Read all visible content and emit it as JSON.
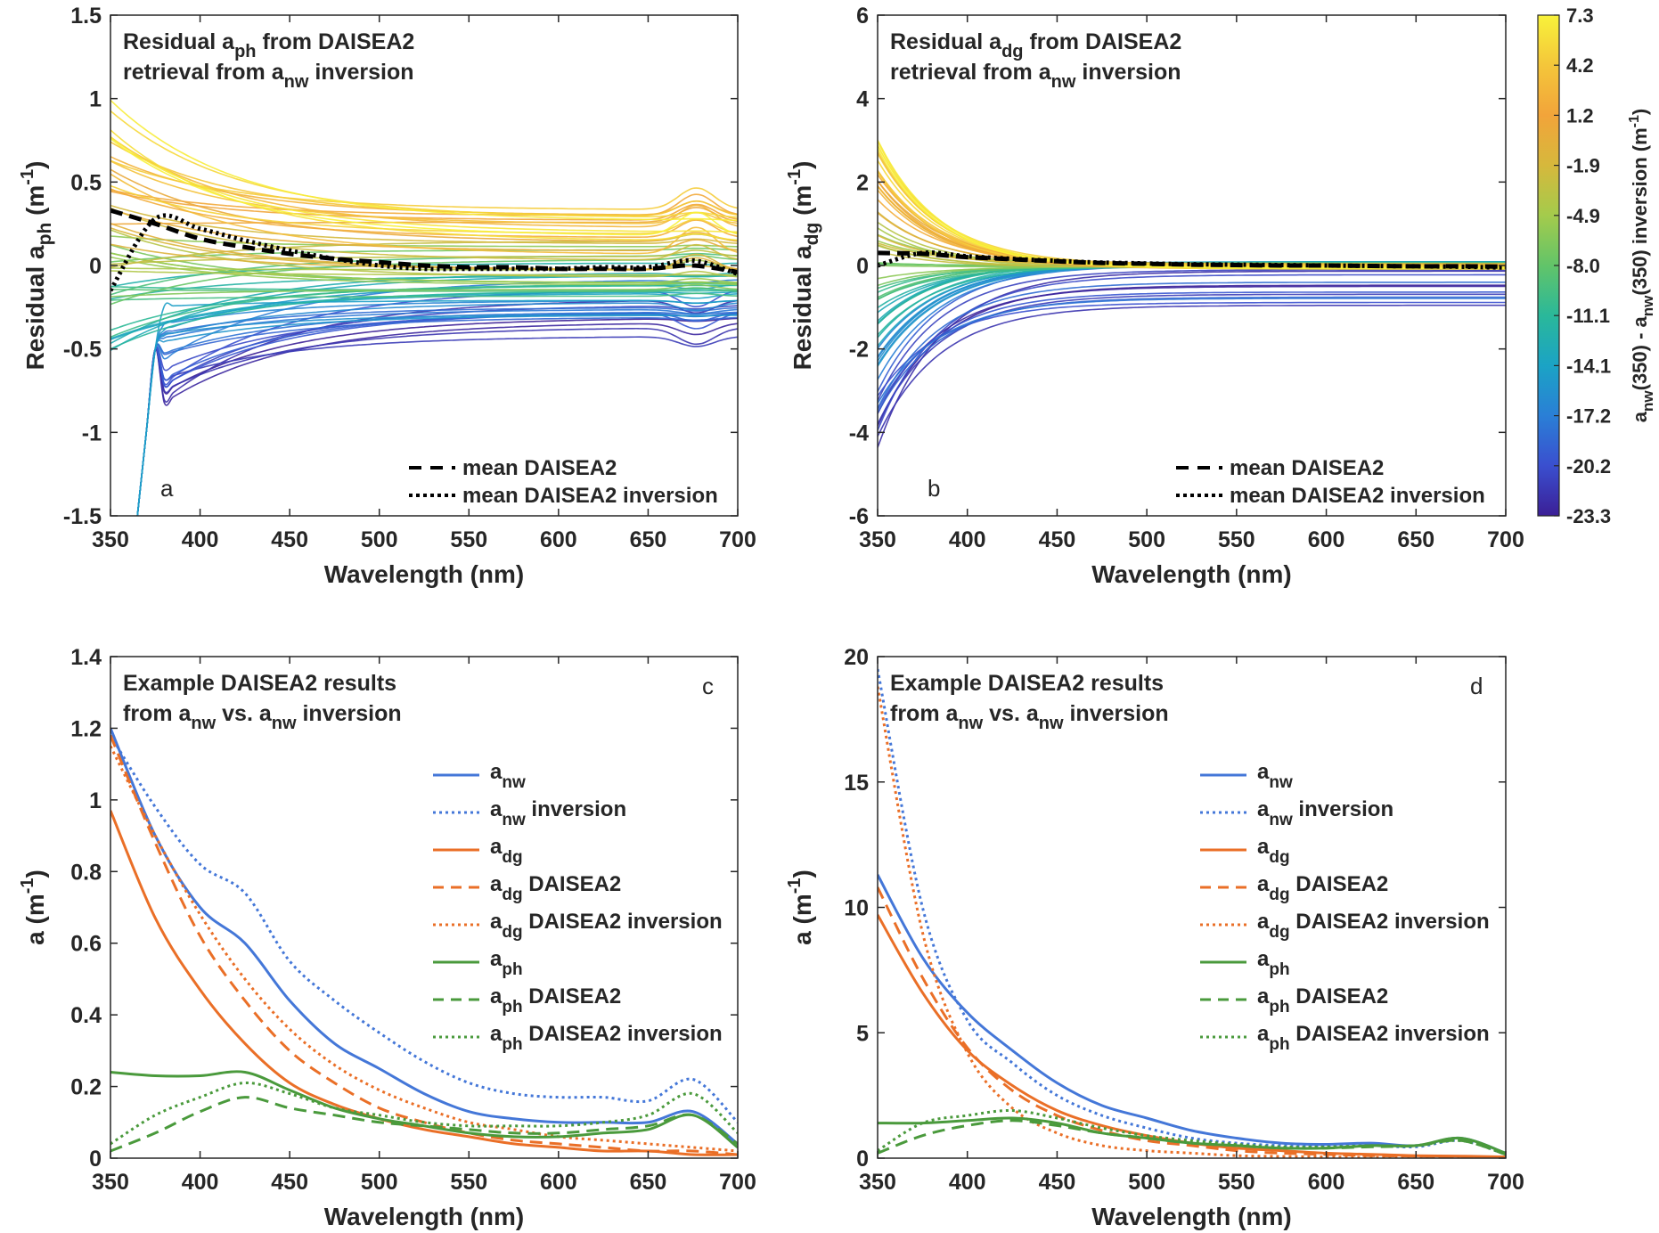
{
  "colors": {
    "anw": "#4477d8",
    "adg": "#ea6f27",
    "aph": "#4a9a3c",
    "mean": "#000000",
    "viridis_stops": [
      "#3b1f96",
      "#3a4fcf",
      "#2a7fd6",
      "#1ba3c5",
      "#2ab89a",
      "#62c469",
      "#a4cb4c",
      "#d6b83c",
      "#f2a43a",
      "#f4c63a",
      "#f8f23a"
    ]
  },
  "colorbar": {
    "ticks": [
      "7.3",
      "4.2",
      "1.2",
      "-1.9",
      "-4.9",
      "-8.0",
      "-11.1",
      "-14.1",
      "-17.2",
      "-20.2",
      "-23.3"
    ],
    "label_main": "a",
    "label_sub1": "nw",
    "label_mid": "(350) - a",
    "label_sub2": "nw",
    "label_tail": "(350) inversion (m",
    "label_sup": "-1",
    "label_close": ")"
  },
  "chart_data": [
    {
      "id": "a",
      "type": "line",
      "panel_letter": "a",
      "title_line1_pre": "Residual a",
      "title_line1_sub": "ph",
      "title_line1_post": " from DAISEA2",
      "title_line2_pre": "retrieval from a",
      "title_line2_sub": "nw",
      "title_line2_post": " inversion",
      "xlabel": "Wavelength (nm)",
      "ylabel_pre": "Residual a",
      "ylabel_sub": "ph",
      "ylabel_mid": " (m",
      "ylabel_sup": "-1",
      "ylabel_post": ")",
      "xlim": [
        350,
        700
      ],
      "ylim": [
        -1.5,
        1.5
      ],
      "xticks": [
        350,
        400,
        450,
        500,
        550,
        600,
        650,
        700
      ],
      "yticks": [
        "-1.5",
        "-1",
        "-0.5",
        "0",
        "0.5",
        "1",
        "1.5"
      ],
      "legend": [
        "mean DAISEA2",
        "mean DAISEA2 inversion"
      ],
      "x": [
        350,
        375,
        400,
        425,
        450,
        475,
        500,
        525,
        550,
        575,
        600,
        625,
        650,
        675,
        700
      ],
      "series": [
        {
          "name": "mean DAISEA2",
          "style": "dashed",
          "values": [
            0.33,
            0.25,
            0.16,
            0.11,
            0.07,
            0.04,
            0.02,
            0.0,
            -0.01,
            -0.01,
            -0.02,
            -0.02,
            -0.02,
            0.0,
            -0.04
          ]
        },
        {
          "name": "mean DAISEA2 inversion",
          "style": "dotted",
          "values": [
            -0.15,
            0.28,
            0.22,
            0.15,
            0.09,
            0.04,
            0.0,
            -0.02,
            -0.02,
            -0.02,
            -0.02,
            -0.01,
            -0.01,
            0.03,
            -0.05
          ]
        }
      ]
    },
    {
      "id": "b",
      "type": "line",
      "panel_letter": "b",
      "title_line1_pre": "Residual a",
      "title_line1_sub": "dg",
      "title_line1_post": " from DAISEA2",
      "title_line2_pre": "retrieval from a",
      "title_line2_sub": "nw",
      "title_line2_post": " inversion",
      "xlabel": "Wavelength (nm)",
      "ylabel_pre": "Residual a",
      "ylabel_sub": "dg",
      "ylabel_mid": " (m",
      "ylabel_sup": "-1",
      "ylabel_post": ")",
      "xlim": [
        350,
        700
      ],
      "ylim": [
        -6,
        6
      ],
      "xticks": [
        350,
        400,
        450,
        500,
        550,
        600,
        650,
        700
      ],
      "yticks": [
        "-6",
        "-4",
        "-2",
        "0",
        "2",
        "4",
        "6"
      ],
      "legend": [
        "mean DAISEA2",
        "mean DAISEA2 inversion"
      ],
      "x": [
        350,
        375,
        400,
        425,
        450,
        475,
        500,
        525,
        550,
        575,
        600,
        625,
        650,
        675,
        700
      ],
      "series": [
        {
          "name": "mean DAISEA2",
          "style": "dashed",
          "values": [
            0.3,
            0.28,
            0.2,
            0.15,
            0.1,
            0.06,
            0.04,
            0.02,
            0.01,
            0.0,
            0.0,
            -0.01,
            -0.02,
            -0.02,
            -0.03
          ]
        },
        {
          "name": "mean DAISEA2 inversion",
          "style": "dotted",
          "values": [
            0.0,
            0.3,
            0.22,
            0.16,
            0.11,
            0.07,
            0.05,
            0.03,
            0.02,
            0.01,
            0.0,
            -0.01,
            -0.02,
            -0.03,
            -0.05
          ]
        }
      ]
    },
    {
      "id": "c",
      "type": "line",
      "panel_letter": "c",
      "title_line1_pre": "Example DAISEA2 results",
      "title_line2_pre": "from a",
      "title_line2_sub": "nw",
      "title_line2_mid": " vs. a",
      "title_line2_sub2": "nw",
      "title_line2_post": " inversion",
      "xlabel": "Wavelength (nm)",
      "ylabel_pre": "a (m",
      "ylabel_sup": "-1",
      "ylabel_post": ")",
      "xlim": [
        350,
        700
      ],
      "ylim": [
        0,
        1.4
      ],
      "xticks": [
        350,
        400,
        450,
        500,
        550,
        600,
        650,
        700
      ],
      "yticks": [
        "0",
        "0.2",
        "0.4",
        "0.6",
        "0.8",
        "1",
        "1.2",
        "1.4"
      ],
      "x": [
        350,
        375,
        400,
        425,
        450,
        475,
        500,
        525,
        550,
        575,
        600,
        625,
        650,
        675,
        700
      ],
      "series": [
        {
          "name_base": "a",
          "name_sub": "nw",
          "name_suffix": "",
          "color": "anw",
          "style": "solid",
          "values": [
            1.2,
            0.9,
            0.7,
            0.6,
            0.44,
            0.32,
            0.25,
            0.18,
            0.13,
            0.11,
            0.1,
            0.1,
            0.1,
            0.13,
            0.04
          ]
        },
        {
          "name_base": "a",
          "name_sub": "nw",
          "name_suffix": " inversion",
          "color": "anw",
          "style": "dotted",
          "values": [
            1.18,
            0.98,
            0.82,
            0.74,
            0.55,
            0.44,
            0.35,
            0.27,
            0.21,
            0.18,
            0.17,
            0.17,
            0.16,
            0.22,
            0.1
          ]
        },
        {
          "name_base": "a",
          "name_sub": "dg",
          "name_suffix": "",
          "color": "adg",
          "style": "solid",
          "values": [
            0.97,
            0.67,
            0.47,
            0.32,
            0.21,
            0.15,
            0.11,
            0.08,
            0.06,
            0.04,
            0.03,
            0.02,
            0.02,
            0.01,
            0.01
          ]
        },
        {
          "name_base": "a",
          "name_sub": "dg",
          "name_suffix": " DAISEA2",
          "color": "adg",
          "style": "dashed",
          "values": [
            1.18,
            0.88,
            0.62,
            0.44,
            0.3,
            0.21,
            0.14,
            0.1,
            0.07,
            0.05,
            0.04,
            0.03,
            0.02,
            0.02,
            0.01
          ]
        },
        {
          "name_base": "a",
          "name_sub": "dg",
          "name_suffix": " DAISEA2 inversion",
          "color": "adg",
          "style": "dotted",
          "values": [
            1.15,
            0.9,
            0.68,
            0.5,
            0.36,
            0.26,
            0.19,
            0.14,
            0.1,
            0.08,
            0.06,
            0.05,
            0.04,
            0.03,
            0.02
          ]
        },
        {
          "name_base": "a",
          "name_sub": "ph",
          "name_suffix": "",
          "color": "aph",
          "style": "solid",
          "values": [
            0.24,
            0.23,
            0.23,
            0.24,
            0.19,
            0.14,
            0.11,
            0.09,
            0.07,
            0.06,
            0.06,
            0.07,
            0.08,
            0.12,
            0.03
          ]
        },
        {
          "name_base": "a",
          "name_sub": "ph",
          "name_suffix": " DAISEA2",
          "color": "aph",
          "style": "dashed",
          "values": [
            0.02,
            0.07,
            0.13,
            0.17,
            0.14,
            0.12,
            0.1,
            0.09,
            0.08,
            0.07,
            0.07,
            0.08,
            0.09,
            0.12,
            0.04
          ]
        },
        {
          "name_base": "a",
          "name_sub": "ph",
          "name_suffix": " DAISEA2 inversion",
          "color": "aph",
          "style": "dotted",
          "values": [
            0.04,
            0.12,
            0.17,
            0.21,
            0.18,
            0.14,
            0.12,
            0.1,
            0.09,
            0.09,
            0.09,
            0.1,
            0.12,
            0.18,
            0.07
          ]
        }
      ]
    },
    {
      "id": "d",
      "type": "line",
      "panel_letter": "d",
      "title_line1_pre": "Example DAISEA2 results",
      "title_line2_pre": "from a",
      "title_line2_sub": "nw",
      "title_line2_mid": " vs. a",
      "title_line2_sub2": "nw",
      "title_line2_post": " inversion",
      "xlabel": "Wavelength (nm)",
      "ylabel_pre": "a (m",
      "ylabel_sup": "-1",
      "ylabel_post": ")",
      "xlim": [
        350,
        700
      ],
      "ylim": [
        0,
        20
      ],
      "xticks": [
        350,
        400,
        450,
        500,
        550,
        600,
        650,
        700
      ],
      "yticks": [
        "0",
        "5",
        "10",
        "15",
        "20"
      ],
      "x": [
        350,
        375,
        400,
        425,
        450,
        475,
        500,
        525,
        550,
        575,
        600,
        625,
        650,
        675,
        700
      ],
      "series": [
        {
          "name_base": "a",
          "name_sub": "nw",
          "name_suffix": "",
          "color": "anw",
          "style": "solid",
          "values": [
            11.3,
            8.0,
            5.8,
            4.3,
            3.0,
            2.1,
            1.6,
            1.1,
            0.8,
            0.6,
            0.55,
            0.6,
            0.5,
            0.8,
            0.2
          ]
        },
        {
          "name_base": "a",
          "name_sub": "nw",
          "name_suffix": " inversion",
          "color": "anw",
          "style": "dotted",
          "values": [
            19.5,
            10.0,
            5.5,
            3.8,
            2.5,
            1.7,
            1.2,
            0.8,
            0.6,
            0.5,
            0.45,
            0.5,
            0.45,
            0.7,
            0.15
          ]
        },
        {
          "name_base": "a",
          "name_sub": "dg",
          "name_suffix": "",
          "color": "adg",
          "style": "solid",
          "values": [
            9.7,
            6.6,
            4.3,
            2.9,
            1.9,
            1.3,
            0.9,
            0.6,
            0.4,
            0.3,
            0.2,
            0.15,
            0.1,
            0.08,
            0.05
          ]
        },
        {
          "name_base": "a",
          "name_sub": "dg",
          "name_suffix": " DAISEA2",
          "color": "adg",
          "style": "dashed",
          "values": [
            10.8,
            7.2,
            4.4,
            2.7,
            1.7,
            1.1,
            0.7,
            0.5,
            0.3,
            0.2,
            0.15,
            0.1,
            0.08,
            0.06,
            0.04
          ]
        },
        {
          "name_base": "a",
          "name_sub": "dg",
          "name_suffix": " DAISEA2 inversion",
          "color": "adg",
          "style": "dotted",
          "values": [
            18.8,
            9.0,
            4.2,
            2.0,
            1.0,
            0.5,
            0.3,
            0.2,
            0.1,
            0.07,
            0.05,
            0.03,
            0.02,
            0.02,
            0.01
          ]
        },
        {
          "name_base": "a",
          "name_sub": "ph",
          "name_suffix": "",
          "color": "aph",
          "style": "solid",
          "values": [
            1.4,
            1.4,
            1.5,
            1.6,
            1.4,
            1.0,
            0.8,
            0.6,
            0.5,
            0.4,
            0.4,
            0.5,
            0.5,
            0.8,
            0.2
          ]
        },
        {
          "name_base": "a",
          "name_sub": "ph",
          "name_suffix": " DAISEA2",
          "color": "aph",
          "style": "dashed",
          "values": [
            0.2,
            0.9,
            1.3,
            1.5,
            1.3,
            1.0,
            0.8,
            0.6,
            0.5,
            0.4,
            0.4,
            0.45,
            0.5,
            0.7,
            0.15
          ]
        },
        {
          "name_base": "a",
          "name_sub": "ph",
          "name_suffix": " DAISEA2 inversion",
          "color": "aph",
          "style": "dotted",
          "values": [
            0.3,
            1.4,
            1.7,
            1.9,
            1.6,
            1.2,
            0.9,
            0.7,
            0.55,
            0.45,
            0.45,
            0.5,
            0.5,
            0.7,
            0.15
          ]
        }
      ]
    }
  ]
}
